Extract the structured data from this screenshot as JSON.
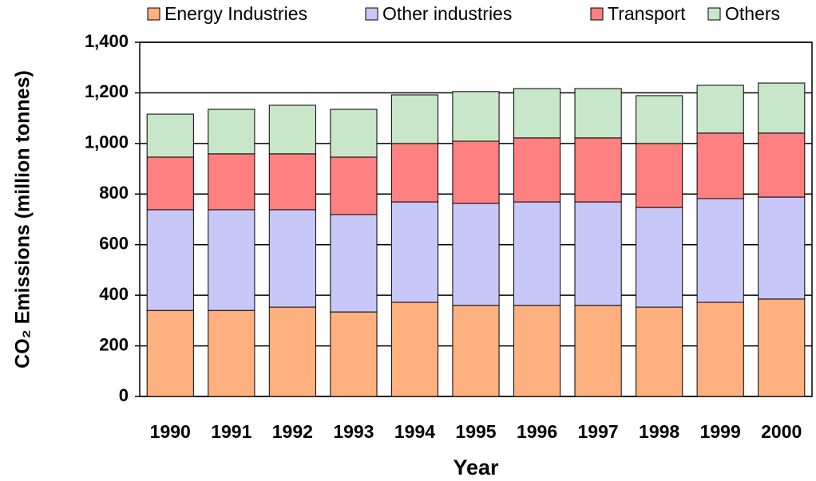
{
  "chart_data": {
    "type": "stacked_bar",
    "y_label": "CO₂ Emissions (million tonnes)",
    "x_label": "Year",
    "categories": [
      "1990",
      "1991",
      "1992",
      "1993",
      "1994",
      "1995",
      "1996",
      "1997",
      "1998",
      "1999",
      "2000"
    ],
    "series": [
      {
        "name": "Energy Industries",
        "color": "#ffb07f",
        "values": [
          340,
          340,
          353,
          334,
          372,
          360,
          360,
          360,
          353,
          372,
          385
        ]
      },
      {
        "name": "Other industries",
        "color": "#c8c8f8",
        "values": [
          398,
          398,
          385,
          385,
          397,
          403,
          409,
          409,
          394,
          410,
          403
        ]
      },
      {
        "name": "Transport",
        "color": "#ff8080",
        "values": [
          208,
          221,
          221,
          227,
          231,
          246,
          253,
          253,
          253,
          259,
          253
        ]
      },
      {
        "name": "Others",
        "color": "#c8e6c8",
        "values": [
          170,
          176,
          192,
          189,
          192,
          196,
          195,
          195,
          189,
          189,
          198
        ]
      }
    ],
    "ylim": [
      0,
      1400
    ],
    "yticks": [
      0,
      200,
      400,
      600,
      800,
      {
        "value": 1000,
        "label": "1,000"
      },
      {
        "value": 1200,
        "label": "1,200"
      },
      {
        "value": 1400,
        "label": "1,400"
      }
    ],
    "grid": true,
    "legend": "top"
  }
}
